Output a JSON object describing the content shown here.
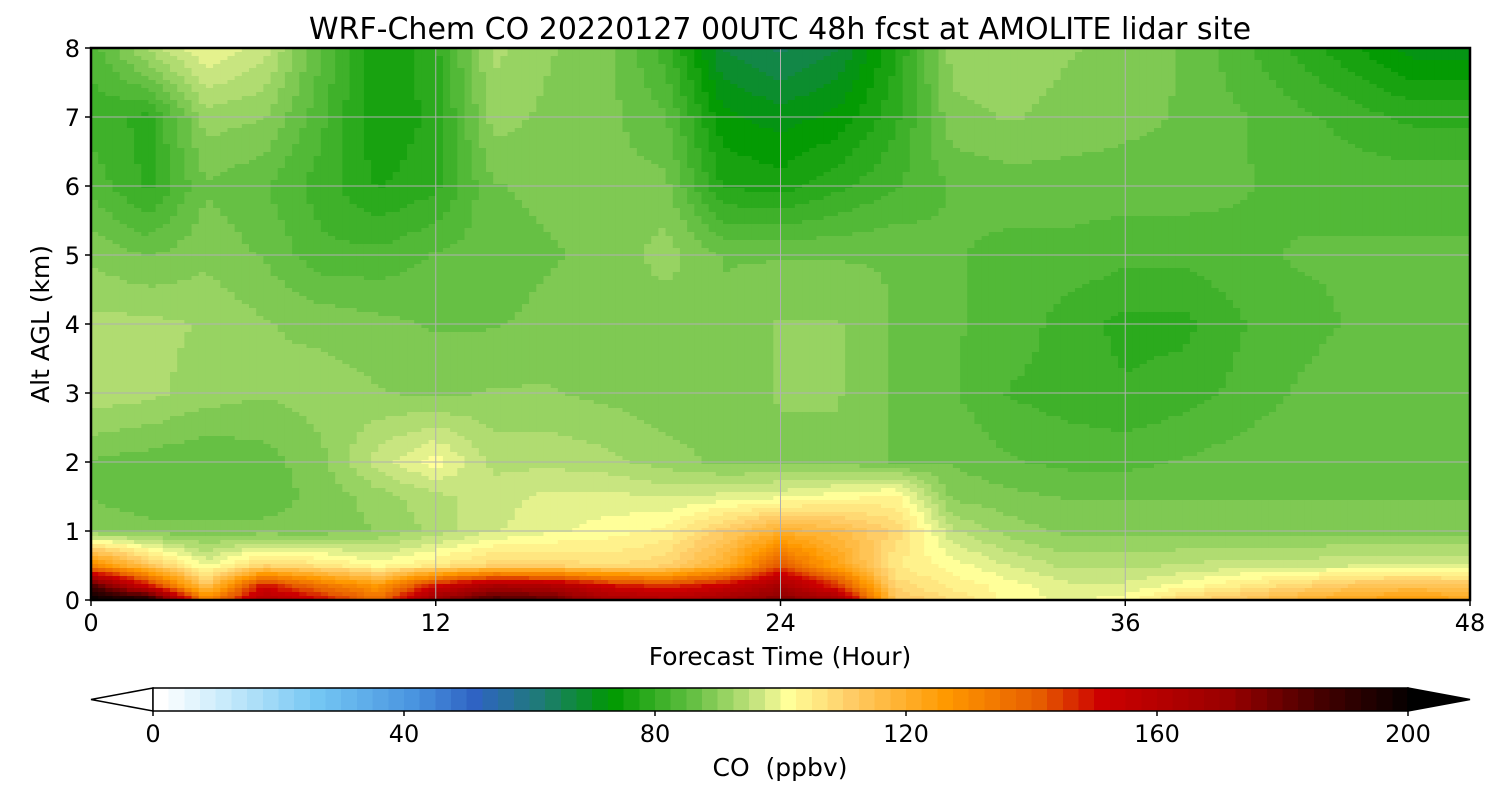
{
  "chart_data": {
    "type": "heatmap",
    "title": "WRF-Chem CO  20220127 00UTC 48h fcst at AMOLITE lidar site",
    "xlabel": "Forecast Time (Hour)",
    "ylabel": "Alt AGL (km)",
    "xlim": [
      0,
      48
    ],
    "ylim": [
      0,
      8
    ],
    "xticks": [
      "0",
      "12",
      "24",
      "36",
      "48"
    ],
    "yticks": [
      "0",
      "1",
      "2",
      "3",
      "4",
      "5",
      "6",
      "7",
      "8"
    ],
    "grid": true,
    "colorbar": {
      "label": "CO  (ppbv)",
      "ticks": [
        "0",
        "40",
        "80",
        "120",
        "160",
        "200"
      ],
      "range": [
        0,
        200
      ],
      "extend": "both",
      "orientation": "horizontal",
      "stops": [
        {
          "v": 0,
          "c": "#ffffff"
        },
        {
          "v": 10,
          "c": "#c9ebfb"
        },
        {
          "v": 25,
          "c": "#74c6f3"
        },
        {
          "v": 40,
          "c": "#4a95e0"
        },
        {
          "v": 50,
          "c": "#2f63c3"
        },
        {
          "v": 60,
          "c": "#1f7a7a"
        },
        {
          "v": 72,
          "c": "#009900"
        },
        {
          "v": 85,
          "c": "#66c044"
        },
        {
          "v": 95,
          "c": "#c8e580"
        },
        {
          "v": 100,
          "c": "#ffff99"
        },
        {
          "v": 110,
          "c": "#ffcc66"
        },
        {
          "v": 125,
          "c": "#ff9900"
        },
        {
          "v": 140,
          "c": "#e65c00"
        },
        {
          "v": 150,
          "c": "#cc0000"
        },
        {
          "v": 170,
          "c": "#990000"
        },
        {
          "v": 185,
          "c": "#440000"
        },
        {
          "v": 200,
          "c": "#000000"
        }
      ]
    },
    "x_hours": [
      0,
      2,
      4,
      6,
      8,
      10,
      12,
      14,
      16,
      18,
      20,
      22,
      24,
      26,
      28,
      30,
      32,
      34,
      36,
      38,
      40,
      42,
      44,
      46,
      48
    ],
    "y_km": [
      0,
      0.2,
      0.5,
      1,
      1.5,
      2,
      3,
      4,
      5,
      6,
      7,
      8
    ],
    "values": [
      [
        200,
        195,
        130,
        160,
        150,
        135,
        170,
        185,
        180,
        165,
        160,
        165,
        175,
        165,
        112,
        106,
        100,
        98,
        100,
        108,
        112,
        118,
        122,
        124,
        122
      ],
      [
        185,
        150,
        112,
        150,
        135,
        125,
        150,
        165,
        162,
        150,
        145,
        152,
        165,
        145,
        108,
        103,
        100,
        97,
        97,
        100,
        104,
        108,
        112,
        114,
        112
      ],
      [
        130,
        112,
        98,
        108,
        105,
        100,
        104,
        108,
        108,
        106,
        108,
        118,
        140,
        122,
        104,
        100,
        96,
        93,
        93,
        94,
        95,
        95,
        96,
        96,
        96
      ],
      [
        88,
        87,
        87,
        87,
        87,
        89,
        92,
        96,
        98,
        100,
        102,
        110,
        118,
        115,
        108,
        94,
        90,
        88,
        88,
        88,
        88,
        88,
        88,
        88,
        88
      ],
      [
        86,
        85,
        85,
        85,
        87,
        90,
        93,
        95,
        97,
        97,
        96,
        97,
        98,
        100,
        102,
        88,
        87,
        86,
        86,
        86,
        86,
        86,
        86,
        86,
        86
      ],
      [
        86,
        85,
        84,
        85,
        88,
        95,
        100,
        93,
        93,
        92,
        90,
        88,
        88,
        88,
        86,
        86,
        84,
        83,
        83,
        84,
        85,
        86,
        86,
        86,
        86
      ],
      [
        93,
        92,
        90,
        89,
        90,
        89,
        88,
        89,
        89,
        88,
        87,
        87,
        89,
        89,
        86,
        84,
        81,
        80,
        79,
        80,
        82,
        84,
        85,
        85,
        85
      ],
      [
        92,
        92,
        91,
        89,
        88,
        87,
        86,
        86,
        87,
        87,
        87,
        87,
        89,
        89,
        86,
        84,
        83,
        80,
        78,
        78,
        81,
        83,
        84,
        84,
        84
      ],
      [
        88,
        86,
        88,
        86,
        82,
        82,
        84,
        85,
        86,
        87,
        90,
        86,
        86,
        86,
        86,
        84,
        83,
        83,
        82,
        82,
        83,
        84,
        84,
        84,
        84
      ],
      [
        83,
        78,
        86,
        84,
        80,
        76,
        78,
        86,
        87,
        87,
        87,
        76,
        75,
        78,
        81,
        84,
        85,
        85,
        85,
        85,
        84,
        83,
        83,
        83,
        83
      ],
      [
        80,
        78,
        90,
        89,
        82,
        74,
        77,
        90,
        88,
        87,
        84,
        72,
        70,
        72,
        78,
        88,
        89,
        88,
        87,
        86,
        84,
        82,
        80,
        78,
        78
      ],
      [
        82,
        92,
        99,
        95,
        84,
        74,
        78,
        92,
        89,
        87,
        80,
        66,
        63,
        66,
        76,
        90,
        90,
        89,
        88,
        86,
        82,
        78,
        74,
        70,
        70
      ]
    ]
  }
}
